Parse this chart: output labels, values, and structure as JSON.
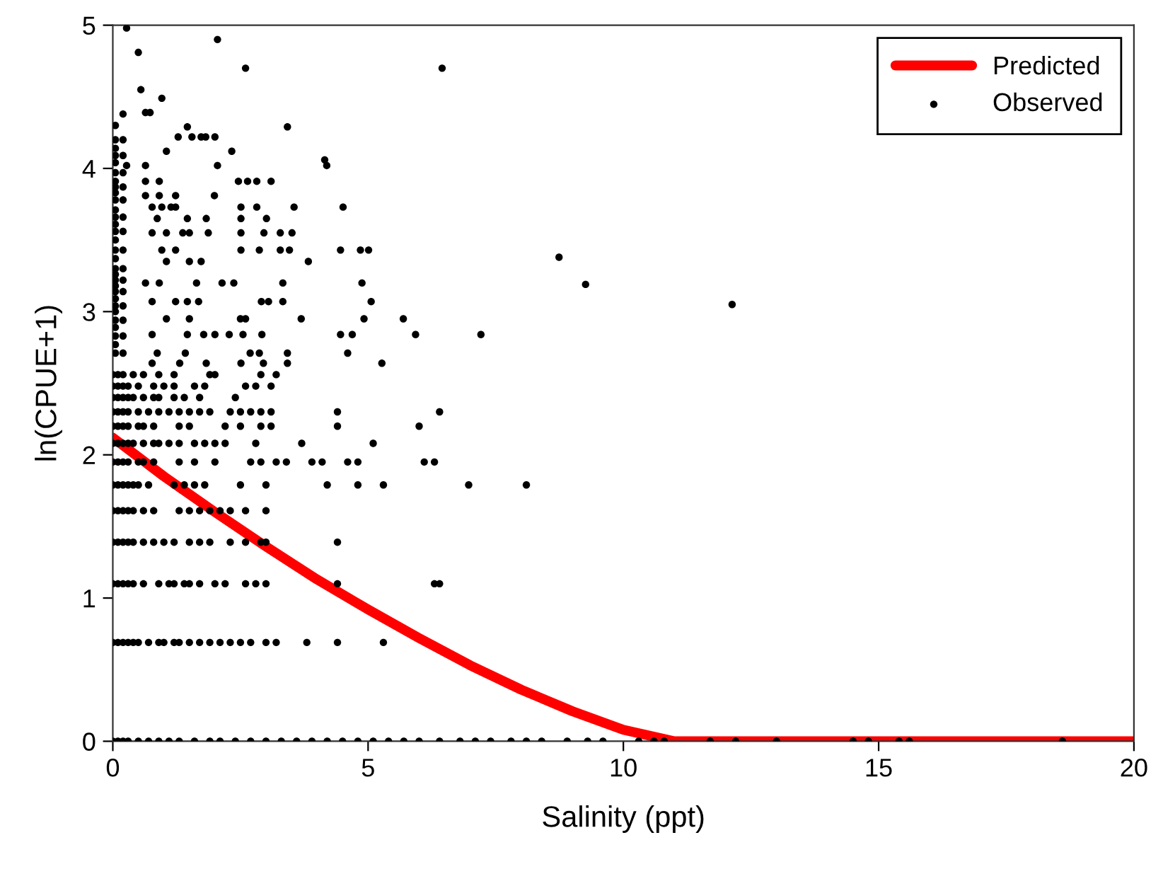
{
  "chart_data": {
    "type": "scatter",
    "xlabel": "Salinity (ppt)",
    "ylabel": "ln(CPUE+1)",
    "xlim": [
      0,
      20
    ],
    "ylim": [
      0,
      5
    ],
    "xticks": [
      0,
      5,
      10,
      15,
      20
    ],
    "yticks": [
      0,
      1,
      2,
      3,
      4,
      5
    ],
    "grid": false,
    "legend": "top right",
    "series": [
      {
        "name": "Predicted",
        "type": "line",
        "color": "#ff0000",
        "marker": "none",
        "line_style": "solid",
        "x": [
          0,
          1,
          2,
          3,
          4,
          5,
          6,
          7,
          8,
          9,
          10,
          11,
          20
        ],
        "values": [
          2.12,
          1.85,
          1.6,
          1.36,
          1.13,
          0.92,
          0.72,
          0.53,
          0.36,
          0.21,
          0.08,
          0,
          0
        ]
      },
      {
        "name": "Observed",
        "color": "#000000",
        "marker": "circle",
        "x": [
          0,
          0.1,
          0.2,
          0.3,
          0.5,
          0.7,
          0.9,
          1.1,
          1.3,
          1.6,
          1.9,
          2.1,
          2.4,
          2.7,
          3.0,
          3.3,
          3.6,
          3.9,
          4.2,
          4.5,
          4.8,
          5.1,
          5.4,
          5.7,
          6.0,
          6.4,
          6.8,
          7.1,
          7.4,
          7.8,
          8.1,
          8.4,
          8.9,
          9.3,
          9.6,
          10.3,
          10.6,
          10.8,
          11.7,
          12.2,
          13.0,
          14.5,
          14.8,
          15.4,
          15.6,
          18.6,
          0,
          0.1,
          0.2,
          0.3,
          0.4,
          0.5,
          0.7,
          0.9,
          1.0,
          1.2,
          1.3,
          1.5,
          1.7,
          1.9,
          2.1,
          2.3,
          2.5,
          2.7,
          3.0,
          3.2,
          3.8,
          4.4,
          5.3,
          0,
          0.1,
          0.2,
          0.3,
          0.4,
          0.6,
          0.9,
          1.1,
          1.2,
          1.4,
          1.5,
          1.7,
          2.0,
          2.2,
          2.6,
          2.8,
          3.0,
          4.4,
          6.3,
          6.4,
          0,
          0.1,
          0.2,
          0.3,
          0.4,
          0.6,
          0.8,
          1.0,
          1.2,
          1.5,
          1.7,
          1.9,
          2.3,
          2.6,
          2.9,
          3.0,
          4.4,
          0,
          0.1,
          0.2,
          0.3,
          0.4,
          0.6,
          0.8,
          1.3,
          1.5,
          1.7,
          1.9,
          2.1,
          2.3,
          2.6,
          3.0,
          0,
          0.1,
          0.2,
          0.3,
          0.4,
          0.5,
          0.7,
          1.2,
          1.4,
          1.6,
          1.8,
          2.5,
          3.0,
          4.2,
          4.8,
          5.3,
          6.97,
          8.1,
          0,
          0.1,
          0.2,
          0.3,
          0.5,
          0.6,
          0.8,
          1.3,
          1.6,
          2.0,
          2.7,
          2.9,
          3.2,
          3.4,
          3.9,
          4.1,
          4.6,
          4.8,
          6.1,
          6.3,
          0,
          0.1,
          0.2,
          0.3,
          0.4,
          0.6,
          0.8,
          0.9,
          1.1,
          1.3,
          1.6,
          1.8,
          2.0,
          2.2,
          2.8,
          3.7,
          5.1,
          0,
          0.1,
          0.2,
          0.3,
          0.5,
          0.6,
          0.8,
          1.3,
          1.5,
          2.2,
          2.5,
          2.9,
          3.1,
          4.4,
          6.0,
          0,
          0.1,
          0.2,
          0.3,
          0.5,
          0.7,
          0.9,
          1.1,
          1.3,
          1.5,
          1.7,
          1.9,
          2.3,
          2.5,
          2.7,
          2.9,
          3.1,
          4.4,
          6.4,
          0,
          0.1,
          0.2,
          0.3,
          0.4,
          0.6,
          0.8,
          0.9,
          1.2,
          1.4,
          1.7,
          2.4,
          0,
          0.1,
          0.2,
          0.3,
          0.5,
          0.8,
          1.0,
          1.2,
          1.6,
          1.8,
          2.6,
          2.8,
          3.1,
          0,
          0.1,
          0.2,
          0.4,
          0.6,
          0.9,
          1.2,
          1.9,
          2.0,
          2.9,
          3.2,
          0.77,
          1.31,
          1.83,
          2.51,
          2.95,
          3.42,
          5.27,
          0.87,
          1.42,
          2.69,
          2.87,
          3.42,
          4.6,
          0.77,
          1.46,
          1.78,
          2.0,
          2.28,
          2.55,
          2.92,
          4.46,
          4.69,
          5.93,
          7.21,
          1.05,
          1.5,
          2.5,
          2.6,
          3.69,
          4.92,
          5.69,
          0.77,
          1.23,
          1.46,
          1.68,
          2.91,
          3.05,
          3.33,
          5.06,
          0.64,
          0.91,
          1.64,
          2.14,
          2.37,
          3.33,
          4.88,
          9.26,
          1.05,
          1.5,
          1.73,
          3.83,
          8.74,
          12.13,
          0.96,
          1.23,
          2.51,
          2.87,
          3.28,
          3.46,
          4.46,
          4.85,
          5.01,
          0.77,
          1.05,
          1.37,
          1.5,
          1.87,
          2.51,
          2.96,
          3.28,
          3.51,
          0.87,
          1.46,
          1.83,
          2.51,
          3.01,
          0.77,
          0.96,
          1.14,
          1.23,
          2.51,
          2.82,
          3.55,
          4.51,
          0.64,
          0.91,
          1.23,
          1.99,
          0.64,
          0.91,
          2.46,
          2.64,
          2.82,
          3.1,
          0.27,
          0.64,
          2.05,
          4.19,
          4.15,
          1.05,
          2.33,
          1.28,
          1.55,
          1.73,
          1.82,
          2.0,
          1.46,
          3.42,
          0.64,
          0.73,
          0.96,
          0.55,
          2.6,
          6.45,
          0.5,
          2.05,
          0.27,
          0.05,
          0.05,
          0.05,
          0.05,
          0.05,
          0.05,
          0.05,
          0.05,
          0.05,
          0.05,
          0.05,
          0.05,
          0.05,
          0.05,
          0.05,
          0.05,
          0.05,
          0.05,
          0.05,
          0.05,
          0.05,
          0.05,
          0.05,
          0.05,
          0.05,
          0.05,
          0.05,
          0.05,
          0.05,
          0.05,
          0.2,
          0.2,
          0.2,
          0.2,
          0.2,
          0.2,
          0.2,
          0.2,
          0.2,
          0.2,
          0.2,
          0.2,
          0.2,
          0.2,
          0.2,
          0.2
        ],
        "values": [
          0,
          0,
          0,
          0,
          0,
          0,
          0,
          0,
          0,
          0,
          0,
          0,
          0,
          0,
          0,
          0,
          0,
          0,
          0,
          0,
          0,
          0,
          0,
          0,
          0,
          0,
          0,
          0,
          0,
          0,
          0,
          0,
          0,
          0,
          0,
          0,
          0,
          0,
          0,
          0,
          0,
          0,
          0,
          0,
          0,
          0,
          0.69,
          0.69,
          0.69,
          0.69,
          0.69,
          0.69,
          0.69,
          0.69,
          0.69,
          0.69,
          0.69,
          0.69,
          0.69,
          0.69,
          0.69,
          0.69,
          0.69,
          0.69,
          0.69,
          0.69,
          0.69,
          0.69,
          0.69,
          1.1,
          1.1,
          1.1,
          1.1,
          1.1,
          1.1,
          1.1,
          1.1,
          1.1,
          1.1,
          1.1,
          1.1,
          1.1,
          1.1,
          1.1,
          1.1,
          1.1,
          1.1,
          1.1,
          1.1,
          1.39,
          1.39,
          1.39,
          1.39,
          1.39,
          1.39,
          1.39,
          1.39,
          1.39,
          1.39,
          1.39,
          1.39,
          1.39,
          1.39,
          1.39,
          1.39,
          1.39,
          1.61,
          1.61,
          1.61,
          1.61,
          1.61,
          1.61,
          1.61,
          1.61,
          1.61,
          1.61,
          1.61,
          1.61,
          1.61,
          1.61,
          1.61,
          1.79,
          1.79,
          1.79,
          1.79,
          1.79,
          1.79,
          1.79,
          1.79,
          1.79,
          1.79,
          1.79,
          1.79,
          1.79,
          1.79,
          1.79,
          1.79,
          1.79,
          1.79,
          1.95,
          1.95,
          1.95,
          1.95,
          1.95,
          1.95,
          1.95,
          1.95,
          1.95,
          1.95,
          1.95,
          1.95,
          1.95,
          1.95,
          1.95,
          1.95,
          1.95,
          1.95,
          1.95,
          1.95,
          2.08,
          2.08,
          2.08,
          2.08,
          2.08,
          2.08,
          2.08,
          2.08,
          2.08,
          2.08,
          2.08,
          2.08,
          2.08,
          2.08,
          2.08,
          2.08,
          2.08,
          2.2,
          2.2,
          2.2,
          2.2,
          2.2,
          2.2,
          2.2,
          2.2,
          2.2,
          2.2,
          2.2,
          2.2,
          2.2,
          2.2,
          2.2,
          2.3,
          2.3,
          2.3,
          2.3,
          2.3,
          2.3,
          2.3,
          2.3,
          2.3,
          2.3,
          2.3,
          2.3,
          2.3,
          2.3,
          2.3,
          2.3,
          2.3,
          2.3,
          2.3,
          2.4,
          2.4,
          2.4,
          2.4,
          2.4,
          2.4,
          2.4,
          2.4,
          2.4,
          2.4,
          2.4,
          2.4,
          2.48,
          2.48,
          2.48,
          2.48,
          2.48,
          2.48,
          2.48,
          2.48,
          2.48,
          2.48,
          2.48,
          2.48,
          2.48,
          2.56,
          2.56,
          2.56,
          2.56,
          2.56,
          2.56,
          2.56,
          2.56,
          2.56,
          2.56,
          2.56,
          2.64,
          2.64,
          2.64,
          2.64,
          2.64,
          2.64,
          2.64,
          2.71,
          2.71,
          2.71,
          2.71,
          2.71,
          2.71,
          2.84,
          2.84,
          2.84,
          2.84,
          2.84,
          2.84,
          2.84,
          2.84,
          2.84,
          2.84,
          2.84,
          2.95,
          2.95,
          2.95,
          2.95,
          2.95,
          2.95,
          2.95,
          3.07,
          3.07,
          3.07,
          3.07,
          3.07,
          3.07,
          3.07,
          3.07,
          3.2,
          3.2,
          3.2,
          3.2,
          3.2,
          3.2,
          3.2,
          3.19,
          3.35,
          3.35,
          3.35,
          3.35,
          3.38,
          3.05,
          3.43,
          3.43,
          3.43,
          3.43,
          3.43,
          3.43,
          3.43,
          3.43,
          3.43,
          3.55,
          3.55,
          3.55,
          3.55,
          3.55,
          3.55,
          3.55,
          3.55,
          3.55,
          3.65,
          3.65,
          3.65,
          3.65,
          3.65,
          3.73,
          3.73,
          3.73,
          3.73,
          3.73,
          3.73,
          3.73,
          3.73,
          3.81,
          3.81,
          3.81,
          3.81,
          3.91,
          3.91,
          3.91,
          3.91,
          3.91,
          3.91,
          4.02,
          4.02,
          4.02,
          4.02,
          4.06,
          4.12,
          4.12,
          4.22,
          4.22,
          4.22,
          4.22,
          4.22,
          4.29,
          4.29,
          4.39,
          4.39,
          4.49,
          4.55,
          4.7,
          4.7,
          4.81,
          4.9,
          4.98,
          2.71,
          2.77,
          2.83,
          2.89,
          2.94,
          3.0,
          3.04,
          3.09,
          3.14,
          3.18,
          3.22,
          3.26,
          3.3,
          3.37,
          3.43,
          3.5,
          3.56,
          3.61,
          3.66,
          3.71,
          3.78,
          3.83,
          3.87,
          3.91,
          3.97,
          4.04,
          4.09,
          4.14,
          4.2,
          4.3,
          2.71,
          2.83,
          2.94,
          3.04,
          3.14,
          3.22,
          3.3,
          3.43,
          3.56,
          3.66,
          3.78,
          3.87,
          3.97,
          4.09,
          4.2,
          4.38
        ]
      }
    ]
  }
}
